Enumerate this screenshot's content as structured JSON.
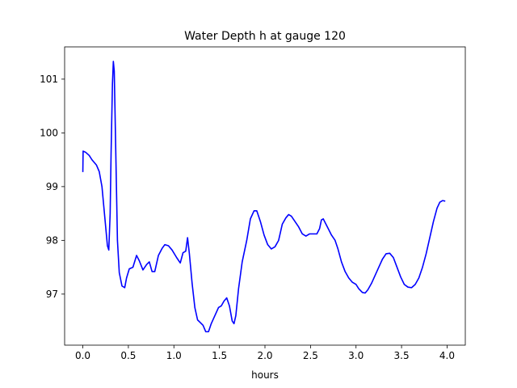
{
  "chart_data": {
    "type": "line",
    "title": "Water Depth h at gauge 120",
    "xlabel": "hours",
    "ylabel": "",
    "xlim": [
      -0.2,
      4.2
    ],
    "ylim": [
      96.05,
      101.6
    ],
    "x_ticks": [
      0.0,
      0.5,
      1.0,
      1.5,
      2.0,
      2.5,
      3.0,
      3.5,
      4.0
    ],
    "x_tick_labels": [
      "0.0",
      "0.5",
      "1.0",
      "1.5",
      "2.0",
      "2.5",
      "3.0",
      "3.5",
      "4.0"
    ],
    "y_ticks": [
      97,
      98,
      99,
      100,
      101
    ],
    "y_tick_labels": [
      "97",
      "98",
      "99",
      "100",
      "101"
    ],
    "grid": false,
    "colors": {
      "series": "#0000ff",
      "axes": "#000000",
      "background": "#ffffff"
    },
    "series": [
      {
        "values": [
          [
            0.0,
            99.27
          ],
          [
            0.003,
            99.66
          ],
          [
            0.03,
            99.64
          ],
          [
            0.07,
            99.58
          ],
          [
            0.1,
            99.5
          ],
          [
            0.15,
            99.4
          ],
          [
            0.18,
            99.28
          ],
          [
            0.21,
            99.0
          ],
          [
            0.24,
            98.45
          ],
          [
            0.27,
            97.9
          ],
          [
            0.285,
            97.82
          ],
          [
            0.3,
            98.5
          ],
          [
            0.31,
            99.6
          ],
          [
            0.325,
            100.9
          ],
          [
            0.335,
            101.33
          ],
          [
            0.345,
            101.15
          ],
          [
            0.36,
            99.8
          ],
          [
            0.38,
            98.0
          ],
          [
            0.4,
            97.4
          ],
          [
            0.43,
            97.15
          ],
          [
            0.46,
            97.12
          ],
          [
            0.48,
            97.3
          ],
          [
            0.51,
            97.47
          ],
          [
            0.55,
            97.5
          ],
          [
            0.59,
            97.72
          ],
          [
            0.62,
            97.62
          ],
          [
            0.66,
            97.45
          ],
          [
            0.7,
            97.55
          ],
          [
            0.73,
            97.6
          ],
          [
            0.76,
            97.42
          ],
          [
            0.79,
            97.42
          ],
          [
            0.83,
            97.72
          ],
          [
            0.87,
            97.85
          ],
          [
            0.9,
            97.92
          ],
          [
            0.94,
            97.9
          ],
          [
            0.98,
            97.82
          ],
          [
            1.03,
            97.68
          ],
          [
            1.07,
            97.58
          ],
          [
            1.1,
            97.77
          ],
          [
            1.13,
            97.8
          ],
          [
            1.15,
            98.05
          ],
          [
            1.17,
            97.75
          ],
          [
            1.2,
            97.2
          ],
          [
            1.23,
            96.75
          ],
          [
            1.26,
            96.52
          ],
          [
            1.29,
            96.47
          ],
          [
            1.32,
            96.42
          ],
          [
            1.35,
            96.3
          ],
          [
            1.38,
            96.3
          ],
          [
            1.41,
            96.45
          ],
          [
            1.45,
            96.6
          ],
          [
            1.49,
            96.75
          ],
          [
            1.52,
            96.78
          ],
          [
            1.55,
            96.87
          ],
          [
            1.58,
            96.93
          ],
          [
            1.61,
            96.78
          ],
          [
            1.64,
            96.5
          ],
          [
            1.66,
            96.45
          ],
          [
            1.68,
            96.6
          ],
          [
            1.71,
            97.1
          ],
          [
            1.75,
            97.6
          ],
          [
            1.8,
            98.0
          ],
          [
            1.84,
            98.4
          ],
          [
            1.88,
            98.55
          ],
          [
            1.91,
            98.55
          ],
          [
            1.95,
            98.35
          ],
          [
            1.99,
            98.1
          ],
          [
            2.03,
            97.92
          ],
          [
            2.07,
            97.84
          ],
          [
            2.11,
            97.88
          ],
          [
            2.15,
            98.0
          ],
          [
            2.19,
            98.3
          ],
          [
            2.23,
            98.42
          ],
          [
            2.26,
            98.48
          ],
          [
            2.29,
            98.45
          ],
          [
            2.33,
            98.35
          ],
          [
            2.37,
            98.25
          ],
          [
            2.41,
            98.12
          ],
          [
            2.45,
            98.08
          ],
          [
            2.49,
            98.12
          ],
          [
            2.53,
            98.12
          ],
          [
            2.57,
            98.12
          ],
          [
            2.6,
            98.22
          ],
          [
            2.62,
            98.38
          ],
          [
            2.64,
            98.4
          ],
          [
            2.67,
            98.3
          ],
          [
            2.7,
            98.2
          ],
          [
            2.73,
            98.1
          ],
          [
            2.77,
            98.0
          ],
          [
            2.8,
            97.85
          ],
          [
            2.84,
            97.6
          ],
          [
            2.88,
            97.42
          ],
          [
            2.92,
            97.3
          ],
          [
            2.96,
            97.22
          ],
          [
            3.0,
            97.18
          ],
          [
            3.03,
            97.1
          ],
          [
            3.07,
            97.03
          ],
          [
            3.1,
            97.02
          ],
          [
            3.13,
            97.08
          ],
          [
            3.17,
            97.2
          ],
          [
            3.21,
            97.35
          ],
          [
            3.25,
            97.5
          ],
          [
            3.29,
            97.65
          ],
          [
            3.33,
            97.75
          ],
          [
            3.37,
            97.76
          ],
          [
            3.41,
            97.68
          ],
          [
            3.45,
            97.5
          ],
          [
            3.49,
            97.32
          ],
          [
            3.53,
            97.18
          ],
          [
            3.57,
            97.13
          ],
          [
            3.61,
            97.12
          ],
          [
            3.65,
            97.18
          ],
          [
            3.69,
            97.3
          ],
          [
            3.73,
            97.5
          ],
          [
            3.77,
            97.75
          ],
          [
            3.81,
            98.05
          ],
          [
            3.85,
            98.35
          ],
          [
            3.89,
            98.6
          ],
          [
            3.92,
            98.71
          ],
          [
            3.95,
            98.74
          ],
          [
            3.98,
            98.73
          ]
        ]
      }
    ]
  }
}
